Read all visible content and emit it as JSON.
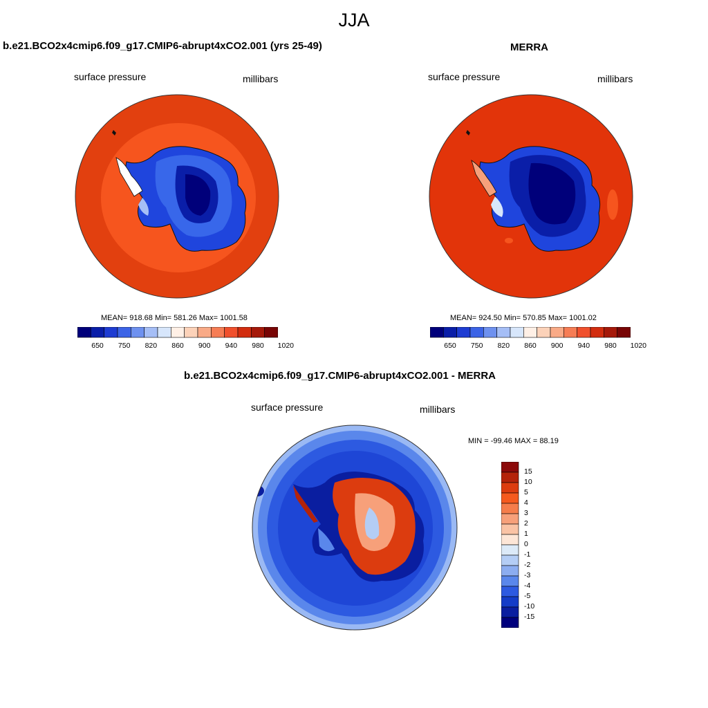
{
  "title": "JJA",
  "panels": [
    {
      "title": "b.e21.BCO2x4cmip6.f09_g17.CMIP6-abrupt4xCO2.001 (yrs 25-49)",
      "left_label": "surface pressure",
      "right_label": "millibars",
      "stats": "MEAN= 918.68  Min= 581.26  Max= 1001.58"
    },
    {
      "title": "MERRA",
      "left_label": "surface pressure",
      "right_label": "millibars",
      "stats": "MEAN= 924.50  Min= 570.85  Max= 1001.02"
    },
    {
      "title": "b.e21.BCO2x4cmip6.f09_g17.CMIP6-abrupt4xCO2.001 - MERRA",
      "left_label": "surface pressure",
      "right_label": "millibars",
      "stats": "MIN = -99.46 MAX =  88.19"
    }
  ],
  "abs_colorbar": {
    "colors": [
      "#00007a",
      "#0a1ea8",
      "#1e3cd2",
      "#3c64e6",
      "#6e91ef",
      "#a5bef6",
      "#d7e6fb",
      "#fff0e6",
      "#fcd2b9",
      "#f9aa87",
      "#f67d55",
      "#f0502d",
      "#d22d0f",
      "#a5190a",
      "#780505"
    ],
    "labels": [
      "650",
      "750",
      "820",
      "860",
      "900",
      "940",
      "980",
      "1020"
    ]
  },
  "diff_colorbar": {
    "colors": [
      "#8c0a0a",
      "#b4230a",
      "#dc3c0f",
      "#f55a1e",
      "#f57d4b",
      "#f7a07a",
      "#fac3a5",
      "#fde6d7",
      "#dceaf8",
      "#b4cdf5",
      "#8cadf0",
      "#5a87eb",
      "#2d5ae1",
      "#143cc8",
      "#0a1ea0",
      "#00007d"
    ],
    "labels": [
      "15",
      "10",
      "5",
      "4",
      "3",
      "2",
      "1",
      "0",
      "-1",
      "-2",
      "-3",
      "-4",
      "-5",
      "-10",
      "-15"
    ]
  }
}
